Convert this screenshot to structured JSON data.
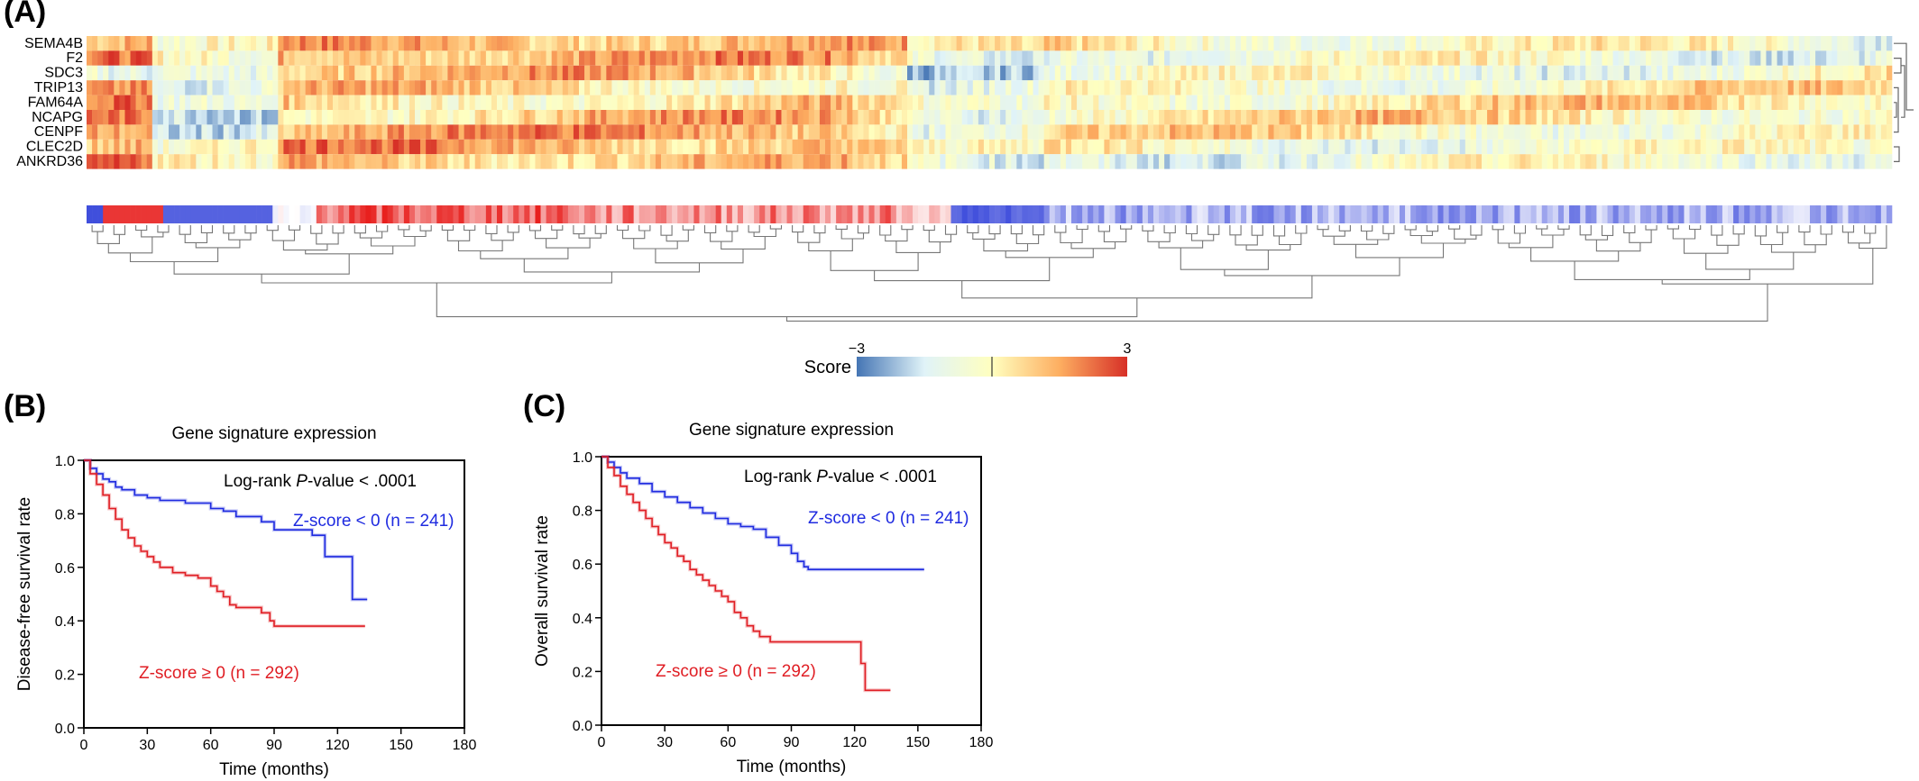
{
  "panels": {
    "a": "(A)",
    "b": "(B)",
    "c": "(C)"
  },
  "chart_data": [
    {
      "type": "heatmap",
      "genes": [
        "SEMA4B",
        "F2",
        "SDC3",
        "TRIP13",
        "FAM64A",
        "NCAPG",
        "CENPF",
        "CLEC2D",
        "ANKRD36"
      ],
      "colorbar": {
        "label": "Score",
        "min": -3,
        "max": 3,
        "min_label": "−3",
        "max_label": "3",
        "colors": [
          "#4575b4",
          "#e0f3f8",
          "#ffffbf",
          "#fdae61",
          "#d73027"
        ]
      },
      "annotation_colors": {
        "negative": "#2b3bd8",
        "positive": "#e8201e"
      },
      "dendrogram": true
    },
    {
      "type": "line",
      "title": "Gene signature expression",
      "xlabel": "Time (months)",
      "ylabel": "Disease-free survival rate",
      "annotation_prefix": "Log-rank ",
      "annotation_italic": "P",
      "annotation_suffix": "-value < .0001",
      "xlim": [
        0,
        180
      ],
      "ylim": [
        0,
        1.0
      ],
      "xticks": [
        0,
        30,
        60,
        90,
        120,
        150,
        180
      ],
      "yticks": [
        "0.0",
        "0.2",
        "0.4",
        "0.6",
        "0.8",
        "1.0"
      ],
      "series": [
        {
          "name": "Z-score < 0 (n = 241)",
          "color": "#1f2be0",
          "points": [
            [
              0,
              1.0
            ],
            [
              3,
              0.97
            ],
            [
              6,
              0.95
            ],
            [
              9,
              0.93
            ],
            [
              12,
              0.92
            ],
            [
              15,
              0.9
            ],
            [
              18,
              0.89
            ],
            [
              24,
              0.87
            ],
            [
              30,
              0.86
            ],
            [
              36,
              0.85
            ],
            [
              42,
              0.85
            ],
            [
              48,
              0.84
            ],
            [
              54,
              0.84
            ],
            [
              60,
              0.82
            ],
            [
              66,
              0.81
            ],
            [
              72,
              0.79
            ],
            [
              78,
              0.79
            ],
            [
              84,
              0.77
            ],
            [
              90,
              0.74
            ],
            [
              96,
              0.74
            ],
            [
              102,
              0.74
            ],
            [
              108,
              0.72
            ],
            [
              114,
              0.64
            ],
            [
              120,
              0.64
            ],
            [
              126,
              0.64
            ],
            [
              127,
              0.48
            ],
            [
              134,
              0.48
            ]
          ]
        },
        {
          "name": "Z-score ≥ 0 (n = 292)",
          "color": "#e01e24",
          "points": [
            [
              0,
              1.0
            ],
            [
              3,
              0.95
            ],
            [
              6,
              0.91
            ],
            [
              9,
              0.87
            ],
            [
              12,
              0.82
            ],
            [
              15,
              0.78
            ],
            [
              18,
              0.74
            ],
            [
              21,
              0.71
            ],
            [
              24,
              0.68
            ],
            [
              27,
              0.66
            ],
            [
              30,
              0.64
            ],
            [
              33,
              0.62
            ],
            [
              36,
              0.6
            ],
            [
              42,
              0.58
            ],
            [
              48,
              0.57
            ],
            [
              54,
              0.56
            ],
            [
              60,
              0.53
            ],
            [
              63,
              0.51
            ],
            [
              66,
              0.49
            ],
            [
              69,
              0.46
            ],
            [
              72,
              0.45
            ],
            [
              78,
              0.45
            ],
            [
              84,
              0.43
            ],
            [
              88,
              0.4
            ],
            [
              90,
              0.38
            ],
            [
              100,
              0.38
            ],
            [
              110,
              0.38
            ],
            [
              120,
              0.38
            ],
            [
              133,
              0.38
            ]
          ]
        }
      ]
    },
    {
      "type": "line",
      "title": "Gene signature expression",
      "xlabel": "Time (months)",
      "ylabel": "Overall survival rate",
      "annotation_prefix": "Log-rank ",
      "annotation_italic": "P",
      "annotation_suffix": "-value < .0001",
      "xlim": [
        0,
        180
      ],
      "ylim": [
        0,
        1.0
      ],
      "xticks": [
        0,
        30,
        60,
        90,
        120,
        150,
        180
      ],
      "yticks": [
        "0.0",
        "0.2",
        "0.4",
        "0.6",
        "0.8",
        "1.0"
      ],
      "series": [
        {
          "name": "Z-score < 0 (n = 241)",
          "color": "#1f2be0",
          "points": [
            [
              0,
              1.0
            ],
            [
              3,
              0.98
            ],
            [
              6,
              0.96
            ],
            [
              9,
              0.94
            ],
            [
              12,
              0.92
            ],
            [
              18,
              0.9
            ],
            [
              24,
              0.87
            ],
            [
              30,
              0.85
            ],
            [
              36,
              0.83
            ],
            [
              42,
              0.81
            ],
            [
              48,
              0.79
            ],
            [
              54,
              0.77
            ],
            [
              60,
              0.75
            ],
            [
              66,
              0.74
            ],
            [
              72,
              0.73
            ],
            [
              78,
              0.7
            ],
            [
              84,
              0.67
            ],
            [
              90,
              0.64
            ],
            [
              93,
              0.61
            ],
            [
              96,
              0.59
            ],
            [
              98,
              0.58
            ],
            [
              110,
              0.58
            ],
            [
              130,
              0.58
            ],
            [
              153,
              0.58
            ]
          ]
        },
        {
          "name": "Z-score ≥ 0 (n = 292)",
          "color": "#e01e24",
          "points": [
            [
              0,
              1.0
            ],
            [
              3,
              0.96
            ],
            [
              6,
              0.93
            ],
            [
              9,
              0.89
            ],
            [
              12,
              0.86
            ],
            [
              15,
              0.83
            ],
            [
              18,
              0.8
            ],
            [
              21,
              0.77
            ],
            [
              24,
              0.74
            ],
            [
              27,
              0.71
            ],
            [
              30,
              0.68
            ],
            [
              33,
              0.66
            ],
            [
              36,
              0.63
            ],
            [
              39,
              0.61
            ],
            [
              42,
              0.58
            ],
            [
              45,
              0.56
            ],
            [
              48,
              0.54
            ],
            [
              51,
              0.52
            ],
            [
              54,
              0.5
            ],
            [
              57,
              0.48
            ],
            [
              60,
              0.46
            ],
            [
              63,
              0.42
            ],
            [
              66,
              0.4
            ],
            [
              69,
              0.37
            ],
            [
              72,
              0.35
            ],
            [
              75,
              0.33
            ],
            [
              80,
              0.31
            ],
            [
              90,
              0.31
            ],
            [
              100,
              0.31
            ],
            [
              110,
              0.31
            ],
            [
              122,
              0.31
            ],
            [
              123,
              0.23
            ],
            [
              125,
              0.13
            ],
            [
              137,
              0.13
            ]
          ]
        }
      ]
    }
  ]
}
